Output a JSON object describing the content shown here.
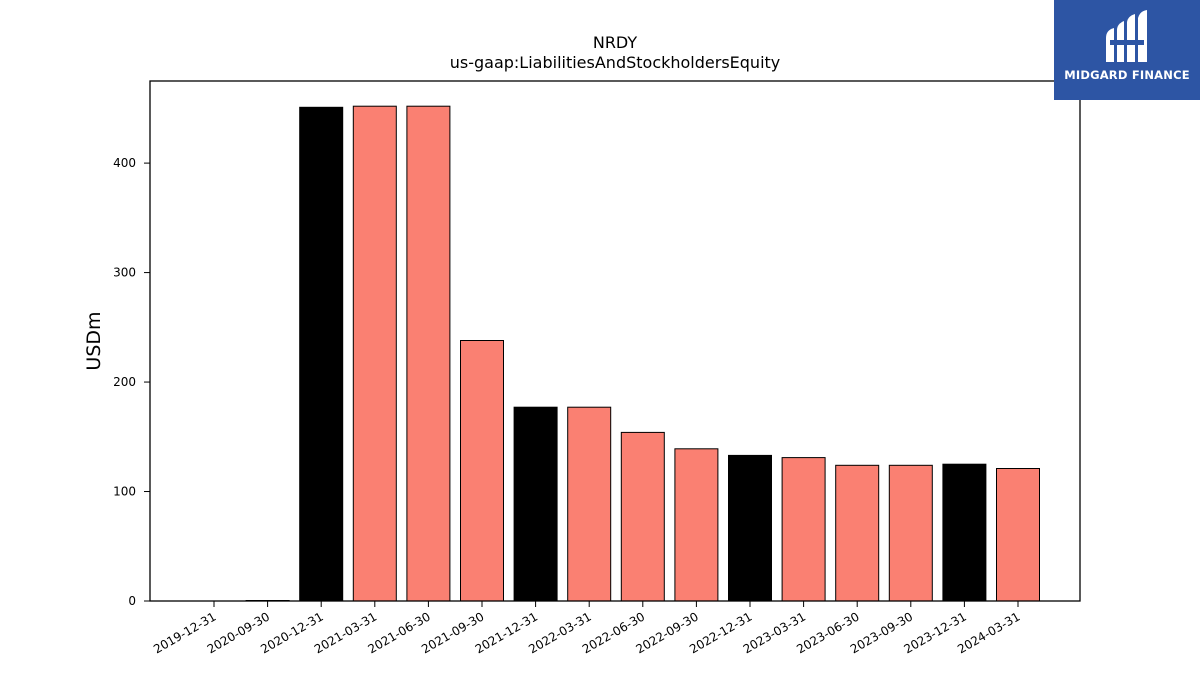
{
  "logo": {
    "text": "MIDGARD FINANCE",
    "background": "#2d55a4"
  },
  "chart_data": {
    "type": "bar",
    "title": "NRDY",
    "subtitle": "us-gaap:LiabilitiesAndStockholdersEquity",
    "xlabel": "",
    "ylabel": "USDm",
    "ylim": [
      0,
      475
    ],
    "yticks": [
      0,
      100,
      200,
      300,
      400
    ],
    "grid": false,
    "categories": [
      "2019-12-31",
      "2020-09-30",
      "2020-12-31",
      "2021-03-31",
      "2021-06-30",
      "2021-09-30",
      "2021-12-31",
      "2022-03-31",
      "2022-06-30",
      "2022-09-30",
      "2022-12-31",
      "2023-03-31",
      "2023-06-30",
      "2023-09-30",
      "2023-12-31",
      "2024-03-31"
    ],
    "values": [
      0,
      0.5,
      451,
      452,
      452,
      238,
      177,
      177,
      154,
      139,
      133,
      131,
      124,
      124,
      125,
      121
    ],
    "bar_colors": [
      "#fa8072",
      "#fa8072",
      "#000000",
      "#fa8072",
      "#fa8072",
      "#fa8072",
      "#000000",
      "#fa8072",
      "#fa8072",
      "#fa8072",
      "#000000",
      "#fa8072",
      "#fa8072",
      "#fa8072",
      "#000000",
      "#fa8072"
    ]
  }
}
